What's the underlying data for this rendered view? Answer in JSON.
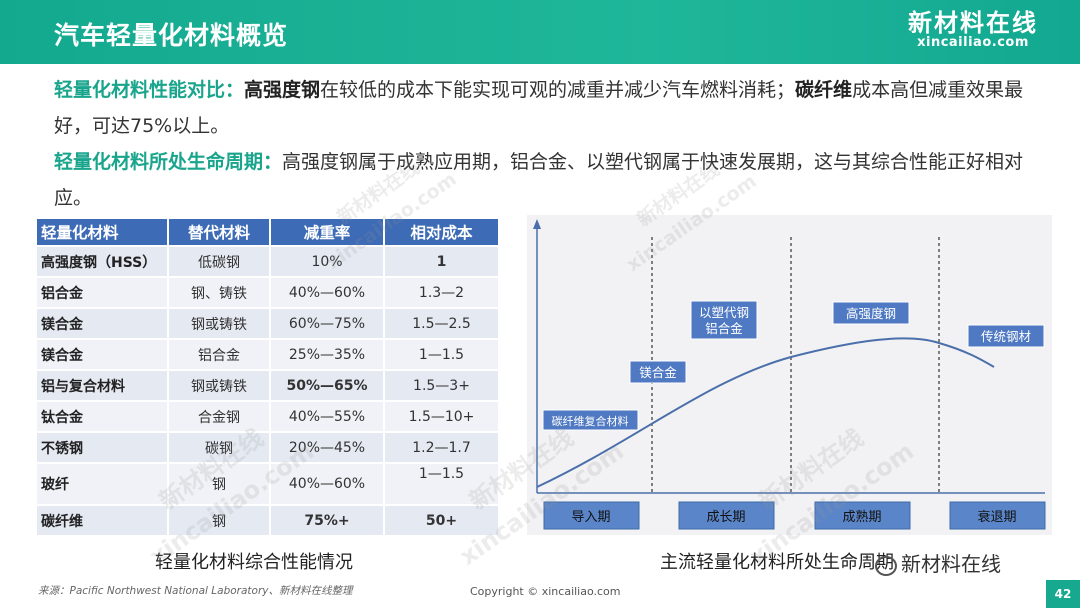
{
  "header": {
    "title": "汽车轻量化材料概览",
    "logo_cn": "新材料在线",
    "logo_en": "xincailiao.com"
  },
  "intro": {
    "p1_label": "轻量化材料性能对比：",
    "p1_b1": "高强度钢",
    "p1_t1": "在较低的成本下能实现可观的减重并减少汽车燃料消耗；",
    "p1_b2": "碳纤维",
    "p1_t2": "成本高但减重效果最好，可达75%以上。",
    "p2_label": "轻量化材料所处生命周期：",
    "p2_text": "高强度钢属于成熟应用期，铝合金、以塑代钢属于快速发展期，这与其综合性能正好相对应。"
  },
  "table": {
    "headers": [
      "轻量化材料",
      "替代材料",
      "减重率",
      "相对成本"
    ],
    "rows": [
      {
        "material": "高强度钢（HSS）",
        "replace": "低碳钢",
        "rate": "10%",
        "cost": "1"
      },
      {
        "material": "铝合金",
        "replace": "钢、铸铁",
        "rate": "40%—60%",
        "cost": "1.3—2"
      },
      {
        "material": "镁合金",
        "replace": "钢或铸铁",
        "rate": "60%—75%",
        "cost": "1.5—2.5"
      },
      {
        "material": "镁合金",
        "replace": "铝合金",
        "rate": "25%—35%",
        "cost": "1—1.5"
      },
      {
        "material": "铝与复合材料",
        "replace": "钢或铸铁",
        "rate": "50%—65%",
        "cost": "1.5—3+"
      },
      {
        "material": "钛合金",
        "replace": "合金钢",
        "rate": "40%—55%",
        "cost": "1.5—10+"
      },
      {
        "material": "不锈钢",
        "replace": "碳钢",
        "rate": "20%—45%",
        "cost": "1.2—1.7"
      },
      {
        "material": "玻纤",
        "replace": "钢",
        "rate": "40%—60%",
        "cost": "1—1.5"
      },
      {
        "material": "碳纤维",
        "replace": "钢",
        "rate": "75%+",
        "cost": "50+"
      }
    ]
  },
  "captions": {
    "table": "轻量化材料综合性能情况",
    "chart": "主流轻量化材料所处生命周期"
  },
  "chart_data": {
    "type": "line",
    "title": "",
    "xlabel": "",
    "ylabel": "",
    "grid": false,
    "phases": [
      "导入期",
      "成长期",
      "成熟期",
      "衰退期"
    ],
    "curve": "life-cycle S-curve rising through 导入期 and 成长期, peaking in 成熟期, declining into 衰退期",
    "annotations": [
      {
        "label": "碳纤维复合材料",
        "phase": "导入期"
      },
      {
        "label": "镁合金",
        "phase": "导入期/成长期"
      },
      {
        "label": "以塑代钢\n铝合金",
        "phase": "成长期"
      },
      {
        "label": "高强度钢",
        "phase": "成熟期"
      },
      {
        "label": "传统钢材",
        "phase": "衰退期"
      }
    ],
    "colors": {
      "curve": "#4a6faa",
      "label_bg": "#4f79c2",
      "phase_bg": "#5a85c8"
    }
  },
  "footer": {
    "source": "来源：Pacific Northwest National Laboratory、新材料在线整理",
    "copyright": "Copyright © xincailiao.com",
    "page": "42",
    "wechat": "新材料在线"
  },
  "watermark": {
    "cn": "新材料在线",
    "en": "xincailiao.com"
  },
  "colors": {
    "brand": "#16a990",
    "table_header": "#3d6bb5",
    "good": "#2aa24a",
    "bad": "#c0262d"
  }
}
